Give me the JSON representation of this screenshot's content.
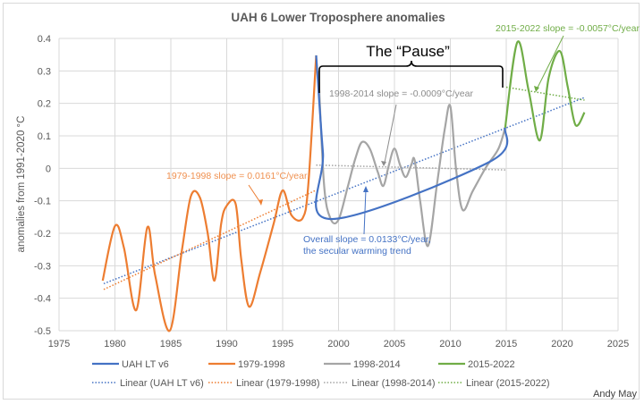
{
  "chart_data": {
    "type": "line",
    "title": "UAH 6 Lower Troposphere anomalies",
    "xlabel": "",
    "ylabel": "anomalies from 1991-2020 °C",
    "xlim": [
      1975,
      2025
    ],
    "ylim": [
      -0.5,
      0.4
    ],
    "x_ticks": [
      1975,
      1980,
      1985,
      1990,
      1995,
      2000,
      2005,
      2010,
      2015,
      2020,
      2025
    ],
    "y_ticks": [
      0.4,
      0.3,
      0.2,
      0.1,
      0,
      -0.1,
      -0.2,
      -0.3,
      -0.4,
      -0.5
    ],
    "y_tick_labels": [
      "0.4",
      "0.3",
      "0.2",
      "0.1",
      "0",
      "-0.1",
      "-0.2",
      "-0.3",
      "-0.4",
      "-0.5"
    ],
    "grid": true,
    "legend_position": "bottom",
    "series": [
      {
        "name": "1979-1998",
        "color": "#ED7D31",
        "style": "solid",
        "points": [
          [
            1978.9,
            -0.346
          ],
          [
            1980.0,
            -0.178
          ],
          [
            1980.8,
            -0.244
          ],
          [
            1981.9,
            -0.437
          ],
          [
            1982.9,
            -0.181
          ],
          [
            1983.6,
            -0.33
          ],
          [
            1984.9,
            -0.5
          ],
          [
            1986.0,
            -0.25
          ],
          [
            1986.8,
            -0.085
          ],
          [
            1987.6,
            -0.09
          ],
          [
            1988.3,
            -0.2
          ],
          [
            1988.9,
            -0.346
          ],
          [
            1989.5,
            -0.17
          ],
          [
            1990.0,
            -0.115
          ],
          [
            1990.8,
            -0.11
          ],
          [
            1991.3,
            -0.28
          ],
          [
            1992.0,
            -0.426
          ],
          [
            1993.0,
            -0.32
          ],
          [
            1994.2,
            -0.17
          ],
          [
            1995.0,
            -0.068
          ],
          [
            1995.8,
            -0.145
          ],
          [
            1996.8,
            -0.153
          ],
          [
            1997.3,
            -0.05
          ],
          [
            1998.0,
            0.348
          ]
        ]
      },
      {
        "name": "UAH LT v6",
        "color": "#4472C4",
        "style": "solid",
        "points": [
          [
            1998.0,
            0.348
          ],
          [
            1998.6,
            0.05
          ],
          [
            1999.2,
            -0.156
          ],
          [
            2013.5,
            0.02
          ],
          [
            2014.9,
            0.125
          ]
        ]
      },
      {
        "name": "1998-2014",
        "color": "#A5A5A5",
        "style": "solid",
        "points": [
          [
            1998.2,
            0.3
          ],
          [
            1998.7,
            -0.05
          ],
          [
            1999.3,
            -0.156
          ],
          [
            2000.0,
            -0.158
          ],
          [
            2000.8,
            -0.06
          ],
          [
            2001.5,
            0.03
          ],
          [
            2002.1,
            0.081
          ],
          [
            2002.8,
            0.06
          ],
          [
            2003.5,
            -0.01
          ],
          [
            2004.0,
            -0.054
          ],
          [
            2004.5,
            0.01
          ],
          [
            2005.0,
            0.061
          ],
          [
            2005.5,
            0.01
          ],
          [
            2006.0,
            -0.027
          ],
          [
            2006.5,
            0.01
          ],
          [
            2006.8,
            0.026
          ],
          [
            2007.3,
            -0.1
          ],
          [
            2008.0,
            -0.239
          ],
          [
            2008.8,
            -0.05
          ],
          [
            2009.5,
            0.12
          ],
          [
            2010.0,
            0.191
          ],
          [
            2010.5,
            0.0
          ],
          [
            2011.1,
            -0.128
          ],
          [
            2012.0,
            -0.07
          ],
          [
            2013.2,
            0.004
          ],
          [
            2014.3,
            0.06
          ],
          [
            2014.9,
            0.125
          ]
        ]
      },
      {
        "name": "2015-2022",
        "color": "#70AD47",
        "style": "solid",
        "points": [
          [
            2014.9,
            0.125
          ],
          [
            2016.0,
            0.389
          ],
          [
            2017.0,
            0.24
          ],
          [
            2018.0,
            0.086
          ],
          [
            2018.8,
            0.28
          ],
          [
            2019.8,
            0.361
          ],
          [
            2020.5,
            0.25
          ],
          [
            2021.2,
            0.133
          ],
          [
            2022.0,
            0.172
          ]
        ]
      }
    ],
    "trendlines": [
      {
        "name": "Linear (UAH LT v6)",
        "color": "#4472C4",
        "x": [
          1979,
          2022
        ],
        "y": [
          -0.355,
          0.218
        ]
      },
      {
        "name": "Linear (1979-1998)",
        "color": "#ED7D31",
        "x": [
          1979,
          1998
        ],
        "y": [
          -0.373,
          -0.067
        ]
      },
      {
        "name": "Linear (1998-2014)",
        "color": "#A5A5A5",
        "x": [
          1998,
          2015
        ],
        "y": [
          0.01,
          -0.005
        ]
      },
      {
        "name": "Linear (2015-2022)",
        "color": "#70AD47",
        "x": [
          2015,
          2022
        ],
        "y": [
          0.25,
          0.21
        ]
      }
    ],
    "annotations": [
      {
        "id": "pause",
        "text": "The “Pause”",
        "color": "#000000"
      },
      {
        "id": "slope-1979",
        "text": "1979-1998 slope = 0.0161°C/year",
        "color": "#ED7D31"
      },
      {
        "id": "slope-1998",
        "text": "1998-2014 slope = -0.0009°C/year",
        "color": "#8C8C8C"
      },
      {
        "id": "slope-2015",
        "text": "2015-2022 slope = -0.0057°C/year",
        "color": "#70AD47"
      },
      {
        "id": "overall-1",
        "text": "Overall slope = 0.0133°C/year,",
        "color": "#4472C4"
      },
      {
        "id": "overall-2",
        "text": "the secular warming trend",
        "color": "#4472C4"
      }
    ],
    "legend": {
      "row1": [
        {
          "label": "UAH LT v6",
          "color": "#4472C4",
          "style": "solid"
        },
        {
          "label": "1979-1998",
          "color": "#ED7D31",
          "style": "solid"
        },
        {
          "label": "1998-2014",
          "color": "#A5A5A5",
          "style": "solid"
        },
        {
          "label": "2015-2022",
          "color": "#70AD47",
          "style": "solid"
        }
      ],
      "row2": [
        {
          "label": "Linear (UAH LT v6)",
          "color": "#4472C4",
          "style": "dotted"
        },
        {
          "label": "Linear (1979-1998)",
          "color": "#ED7D31",
          "style": "dotted"
        },
        {
          "label": "Linear (1998-2014)",
          "color": "#A5A5A5",
          "style": "dotted"
        },
        {
          "label": "Linear (2015-2022)",
          "color": "#70AD47",
          "style": "dotted"
        }
      ]
    },
    "credit": "Andy May"
  }
}
